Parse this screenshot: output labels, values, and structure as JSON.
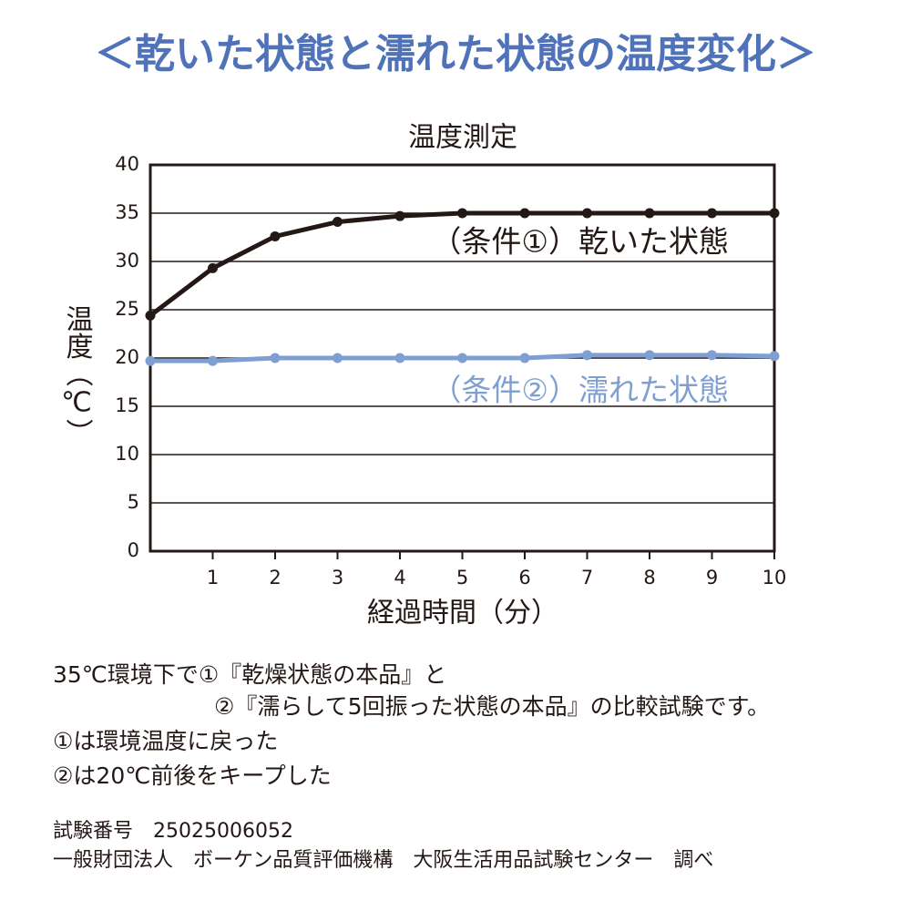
{
  "header": {
    "title": "＜乾いた状態と濡れた状態の温度変化＞"
  },
  "chart_data": {
    "type": "line",
    "title": "温度測定",
    "x_label": "経過時間（分）",
    "y_label": "温度（℃）",
    "x": [
      0,
      1,
      2,
      3,
      4,
      5,
      6,
      7,
      8,
      9,
      10
    ],
    "series": [
      {
        "name": "（条件①）乾いた状態",
        "color": "#231815",
        "values": [
          24.4,
          29.3,
          32.6,
          34.1,
          34.7,
          35.0,
          35.0,
          35.0,
          35.0,
          35.0,
          35.0
        ]
      },
      {
        "name": "（条件②）濡れた状態",
        "color": "#7f9fd3",
        "values": [
          19.7,
          19.7,
          20.0,
          20.0,
          20.0,
          20.0,
          20.0,
          20.3,
          20.3,
          20.3,
          20.2
        ]
      }
    ],
    "xlim": [
      0,
      10
    ],
    "xticks": [
      1,
      2,
      3,
      4,
      5,
      6,
      7,
      8,
      9,
      10
    ],
    "ylim": [
      0,
      40
    ],
    "yticks": [
      0,
      5,
      10,
      15,
      20,
      25,
      30,
      35,
      40
    ],
    "grid": true
  },
  "notes": [
    "35℃環境下で①『乾燥状態の本品』と",
    "②『濡らして5回振った状態の本品』の比較試験です。",
    "①は環境温度に戻った",
    "②は20℃前後をキープした"
  ],
  "footer": [
    "試験番号　25025006052",
    "一般財団法人　ボーケン品質評価機構　大阪生活用品試験センター　調べ"
  ]
}
